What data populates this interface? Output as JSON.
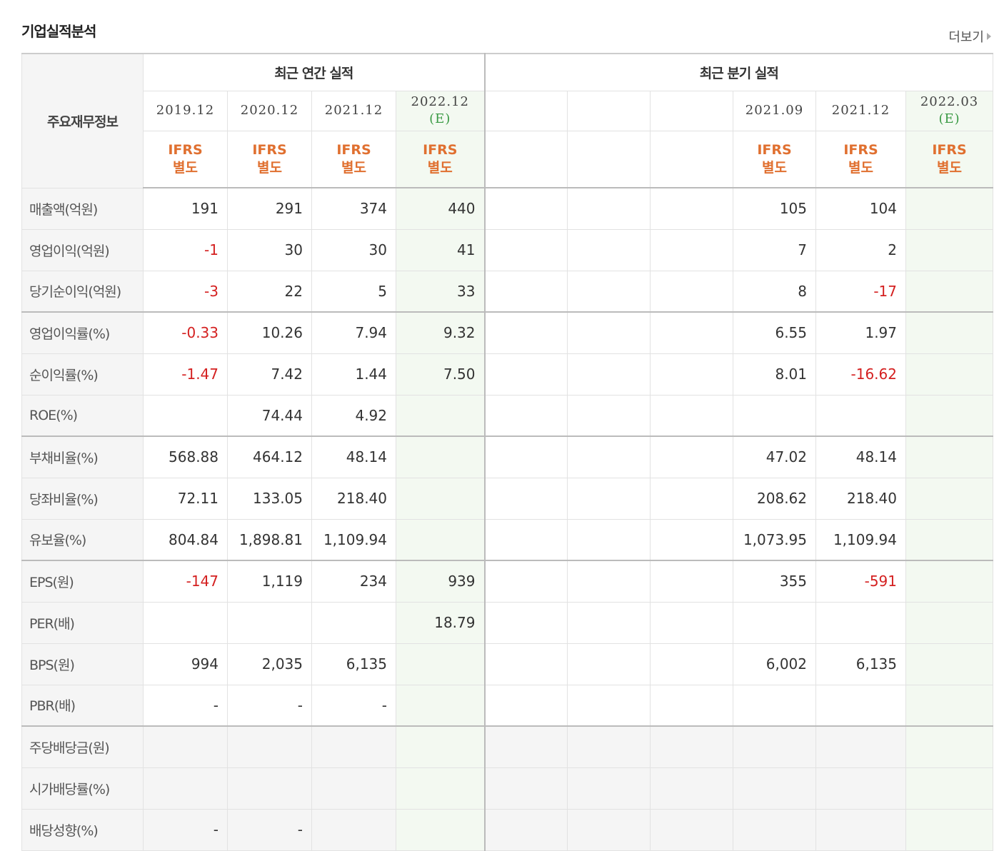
{
  "section_title": "기업실적분석",
  "more_label": "더보기",
  "table": {
    "row_header_label": "주요재무정보",
    "annual_group_label": "최근 연간 실적",
    "quarter_group_label": "최근 분기 실적",
    "periods": [
      {
        "label": "2019.12",
        "est": ""
      },
      {
        "label": "2020.12",
        "est": ""
      },
      {
        "label": "2021.12",
        "est": ""
      },
      {
        "label": "2022.12",
        "est": "(E)"
      },
      {
        "label": "",
        "est": ""
      },
      {
        "label": "",
        "est": ""
      },
      {
        "label": "",
        "est": ""
      },
      {
        "label": "2021.09",
        "est": ""
      },
      {
        "label": "2021.12",
        "est": ""
      },
      {
        "label": "2022.03",
        "est": "(E)"
      }
    ],
    "basis": [
      {
        "line1": "IFRS",
        "line2": "별도"
      },
      {
        "line1": "IFRS",
        "line2": "별도"
      },
      {
        "line1": "IFRS",
        "line2": "별도"
      },
      {
        "line1": "IFRS",
        "line2": "별도"
      },
      {
        "line1": "",
        "line2": ""
      },
      {
        "line1": "",
        "line2": ""
      },
      {
        "line1": "",
        "line2": ""
      },
      {
        "line1": "IFRS",
        "line2": "별도"
      },
      {
        "line1": "IFRS",
        "line2": "별도"
      },
      {
        "line1": "IFRS",
        "line2": "별도"
      }
    ],
    "rows": [
      {
        "label": "매출액(억원)",
        "values": [
          "191",
          "291",
          "374",
          "440",
          "",
          "",
          "",
          "105",
          "104",
          ""
        ]
      },
      {
        "label": "영업이익(억원)",
        "values": [
          "-1",
          "30",
          "30",
          "41",
          "",
          "",
          "",
          "7",
          "2",
          ""
        ]
      },
      {
        "label": "당기순이익(억원)",
        "values": [
          "-3",
          "22",
          "5",
          "33",
          "",
          "",
          "",
          "8",
          "-17",
          ""
        ]
      },
      {
        "label": "영업이익률(%)",
        "values": [
          "-0.33",
          "10.26",
          "7.94",
          "9.32",
          "",
          "",
          "",
          "6.55",
          "1.97",
          ""
        ]
      },
      {
        "label": "순이익률(%)",
        "values": [
          "-1.47",
          "7.42",
          "1.44",
          "7.50",
          "",
          "",
          "",
          "8.01",
          "-16.62",
          ""
        ]
      },
      {
        "label": "ROE(%)",
        "values": [
          "",
          "74.44",
          "4.92",
          "",
          "",
          "",
          "",
          "",
          "",
          ""
        ]
      },
      {
        "label": "부채비율(%)",
        "values": [
          "568.88",
          "464.12",
          "48.14",
          "",
          "",
          "",
          "",
          "47.02",
          "48.14",
          ""
        ]
      },
      {
        "label": "당좌비율(%)",
        "values": [
          "72.11",
          "133.05",
          "218.40",
          "",
          "",
          "",
          "",
          "208.62",
          "218.40",
          ""
        ]
      },
      {
        "label": "유보율(%)",
        "values": [
          "804.84",
          "1,898.81",
          "1,109.94",
          "",
          "",
          "",
          "",
          "1,073.95",
          "1,109.94",
          ""
        ]
      },
      {
        "label": "EPS(원)",
        "values": [
          "-147",
          "1,119",
          "234",
          "939",
          "",
          "",
          "",
          "355",
          "-591",
          ""
        ]
      },
      {
        "label": "PER(배)",
        "values": [
          "",
          "",
          "",
          "18.79",
          "",
          "",
          "",
          "",
          "",
          ""
        ]
      },
      {
        "label": "BPS(원)",
        "values": [
          "994",
          "2,035",
          "6,135",
          "",
          "",
          "",
          "",
          "6,002",
          "6,135",
          ""
        ]
      },
      {
        "label": "PBR(배)",
        "values": [
          "-",
          "-",
          "-",
          "",
          "",
          "",
          "",
          "",
          "",
          ""
        ]
      },
      {
        "label": "주당배당금(원)",
        "values": [
          "",
          "",
          "",
          "",
          "",
          "",
          "",
          "",
          "",
          ""
        ]
      },
      {
        "label": "시가배당률(%)",
        "values": [
          "",
          "",
          "",
          "",
          "",
          "",
          "",
          "",
          "",
          ""
        ]
      },
      {
        "label": "배당성향(%)",
        "values": [
          "-",
          "-",
          "",
          "",
          "",
          "",
          "",
          "",
          "",
          ""
        ]
      }
    ]
  }
}
